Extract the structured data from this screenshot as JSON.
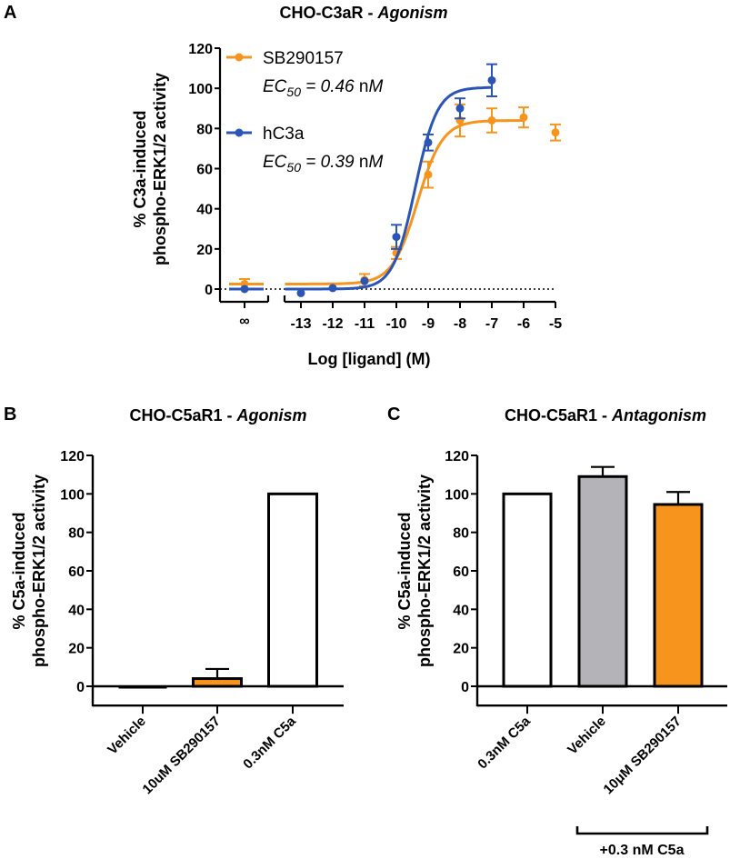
{
  "figure": {
    "panel_letters": [
      "A",
      "B",
      "C"
    ]
  },
  "colors": {
    "orange": "#F7941D",
    "blue": "#2B55B5",
    "gray": "#B3B3B8",
    "white": "#FFFFFF",
    "black": "#000000"
  },
  "chart_data": [
    {
      "panel": "A",
      "type": "line",
      "title_main": "CHO-C3aR - ",
      "title_italic": "Agonism",
      "xlabel": "Log [ligand] (M)",
      "ylabel_line1": "% C3a-induced",
      "ylabel_line2": "phospho-ERK1/2 activity",
      "ylim": [
        0,
        120
      ],
      "yticks": [
        0,
        20,
        40,
        60,
        80,
        100,
        120
      ],
      "ytick_labels": [
        "0",
        "20",
        "40",
        "60",
        "80",
        "100",
        "120"
      ],
      "xlim": [
        -13.5,
        -5
      ],
      "xticks": [
        -13,
        -12,
        -11,
        -10,
        -9,
        -8,
        -7,
        -6,
        -5
      ],
      "xtick_labels": [
        "-13",
        "-12",
        "-11",
        "-10",
        "-9",
        "-8",
        "-7",
        "-6",
        "-5"
      ],
      "x_break_label": "∞",
      "axis_break": true,
      "reference_line": {
        "y": 0,
        "style": "dotted"
      },
      "legend_position": "top-left",
      "series": [
        {
          "name": "SB290157",
          "ec50_label": "EC",
          "ec50_sub": "50",
          "ec50_value": " = 0.46 ",
          "ec50_unit_n": "n",
          "ec50_unit_M": "M",
          "color_key": "orange",
          "baseline_point": {
            "y": 2.5,
            "err": 2.5
          },
          "x": [
            -11,
            -10,
            -9,
            -8,
            -7,
            -6,
            -5
          ],
          "y": [
            4.5,
            18,
            57,
            84,
            84,
            85.5,
            78
          ],
          "err": [
            3,
            3,
            6.5,
            8,
            6,
            5,
            4
          ],
          "fit": {
            "bottom": 2.5,
            "top": 84,
            "logEC50": -9.34,
            "hill": 1.1,
            "x_range": [
              -13.5,
              -6
            ]
          }
        },
        {
          "name": "hC3a",
          "ec50_label": "EC",
          "ec50_sub": "50",
          "ec50_value": " = 0.39 ",
          "ec50_unit_n": "n",
          "ec50_unit_M": "M",
          "color_key": "blue",
          "baseline_point": {
            "y": 0,
            "err": 0
          },
          "x": [
            -13,
            -12,
            -11,
            -10,
            -9,
            -8,
            -7
          ],
          "y": [
            -2,
            0.5,
            4,
            26,
            73,
            90,
            104
          ],
          "err": [
            0,
            0,
            0,
            6,
            4,
            5,
            8
          ],
          "fit": {
            "bottom": 0,
            "top": 100.5,
            "logEC50": -9.41,
            "hill": 1.25,
            "x_range": [
              -13.5,
              -7
            ]
          }
        }
      ]
    },
    {
      "panel": "B",
      "type": "bar",
      "title_main": "CHO-C5aR1 - ",
      "title_italic": "Agonism",
      "ylabel_line1": "% C5a-induced",
      "ylabel_line2": "phospho-ERK1/2 activity",
      "ylim": [
        -10,
        120
      ],
      "yticks": [
        0,
        20,
        40,
        60,
        80,
        100,
        120
      ],
      "ytick_labels": [
        "0",
        "20",
        "40",
        "60",
        "80",
        "100",
        "120"
      ],
      "categories": [
        "Vehicle",
        "10uM SB290157",
        "0.3nM C5a"
      ],
      "values": [
        -1,
        4,
        100
      ],
      "err": [
        0,
        5,
        0
      ],
      "fill_keys": [
        "black",
        "orange",
        "white"
      ]
    },
    {
      "panel": "C",
      "type": "bar",
      "title_main": "CHO-C5aR1 - ",
      "title_italic": "Antagonism",
      "ylabel_line1": "% C5a-induced",
      "ylabel_line2": "phospho-ERK1/2 activity",
      "ylim": [
        -10,
        120
      ],
      "yticks": [
        0,
        20,
        40,
        60,
        80,
        100,
        120
      ],
      "ytick_labels": [
        "0",
        "20",
        "40",
        "60",
        "80",
        "100",
        "120"
      ],
      "categories": [
        "0.3nM C5a",
        "Vehicle",
        "10μM SB290157"
      ],
      "values": [
        100,
        109,
        94.5
      ],
      "err": [
        0,
        5,
        6.5
      ],
      "fill_keys": [
        "white",
        "gray",
        "orange"
      ],
      "bracket_label": "+0.3 nM C5a",
      "bracket_categories": [
        "Vehicle",
        "10μM SB290157"
      ]
    }
  ]
}
